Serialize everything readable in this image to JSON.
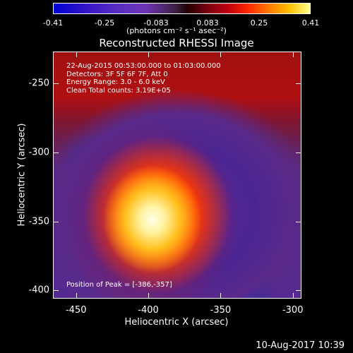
{
  "colorbar": {
    "ticks": [
      "-0.41",
      "-0.25",
      "-0.083",
      "0.083",
      "0.25",
      "0.41"
    ],
    "units": "(photons cm⁻² s⁻¹ asec⁻²)"
  },
  "title": "Reconstructed RHESSI Image",
  "annotations": {
    "time": "22-Aug-2015 00:53:00.000 to 01:03:00.000",
    "detectors": "Detectors: 3F 5F 6F 7F, Att 0",
    "energy": "Energy Range: 3.0 - 6.0 keV",
    "clean": "Clean     Total counts: 3.19E+05",
    "peak": "Position of Peak = [-386,-357]"
  },
  "footer": "10-Aug-2017 10:39",
  "chart_data": {
    "type": "heatmap",
    "title": "Reconstructed RHESSI Image",
    "xlabel": "Heliocentric X (arcsec)",
    "ylabel": "Heliocentric Y (arcsec)",
    "xlim": [
      -466,
      -294
    ],
    "ylim": [
      -406,
      -227
    ],
    "x_ticks": [
      -450,
      -400,
      -350,
      -300
    ],
    "y_ticks": [
      -250,
      -300,
      -350,
      -400
    ],
    "colorbar_range": [
      -0.41,
      0.41
    ],
    "peak": [
      -386,
      -357
    ]
  }
}
